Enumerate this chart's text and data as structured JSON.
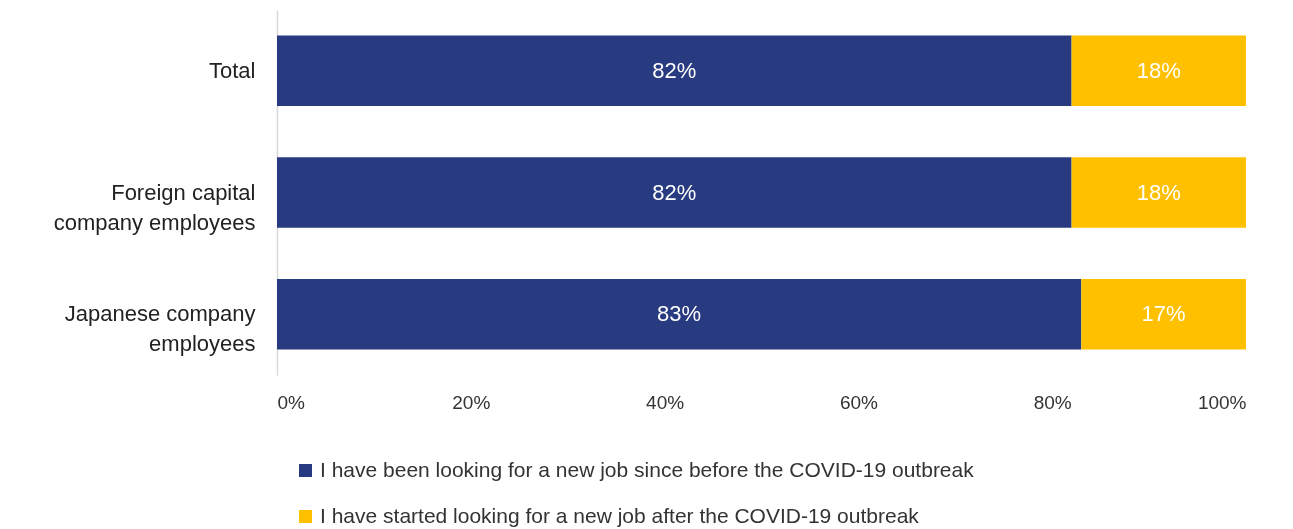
{
  "chart_data": {
    "type": "bar",
    "orientation": "horizontal",
    "stacked": true,
    "categories": [
      "Total",
      "Foreign capital company employees",
      "Japanese company employees"
    ],
    "series": [
      {
        "name": "I have been looking for a new job since before the COVID-19 outbreak",
        "color": "#283a80",
        "values": [
          82,
          82,
          83
        ],
        "value_labels": [
          "82%",
          "82%",
          "83%"
        ]
      },
      {
        "name": "I have started looking for a new job after the COVID-19 outbreak",
        "color": "#ffc000",
        "values": [
          18,
          18,
          17
        ],
        "value_labels": [
          "18%",
          "18%",
          "17%"
        ]
      }
    ],
    "xlim": [
      0,
      100
    ],
    "xticks": [
      {
        "value": 0,
        "label": "0%"
      },
      {
        "value": 20,
        "label": "20%"
      },
      {
        "value": 40,
        "label": "40%"
      },
      {
        "value": 60,
        "label": "60%"
      },
      {
        "value": 80,
        "label": "80%"
      },
      {
        "value": 100,
        "label": "100%"
      }
    ],
    "grid": false,
    "legend": "bottom"
  }
}
